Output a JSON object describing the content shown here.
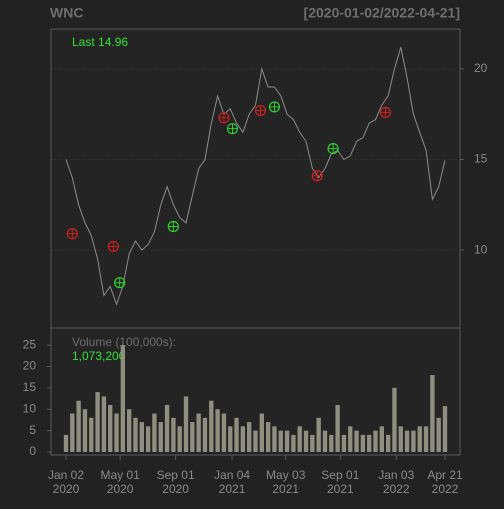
{
  "chart_data": {
    "type": "line",
    "title": "WNC",
    "subtitle": "[2020-01-02/2022-04-21]",
    "annotation": "Last 14.96",
    "x": [
      "2020-01-02",
      "2020-01-16",
      "2020-01-30",
      "2020-02-13",
      "2020-02-27",
      "2020-03-12",
      "2020-03-26",
      "2020-04-09",
      "2020-04-23",
      "2020-05-07",
      "2020-05-21",
      "2020-06-04",
      "2020-06-18",
      "2020-07-02",
      "2020-07-16",
      "2020-07-30",
      "2020-08-13",
      "2020-08-27",
      "2020-09-10",
      "2020-09-24",
      "2020-10-08",
      "2020-10-22",
      "2020-11-05",
      "2020-11-19",
      "2020-12-03",
      "2020-12-17",
      "2020-12-31",
      "2021-01-14",
      "2021-01-28",
      "2021-02-11",
      "2021-02-25",
      "2021-03-11",
      "2021-03-25",
      "2021-04-08",
      "2021-04-22",
      "2021-05-06",
      "2021-05-20",
      "2021-06-03",
      "2021-06-17",
      "2021-07-01",
      "2021-07-15",
      "2021-07-29",
      "2021-08-12",
      "2021-08-26",
      "2021-09-09",
      "2021-09-23",
      "2021-10-07",
      "2021-10-21",
      "2021-11-04",
      "2021-11-18",
      "2021-12-02",
      "2021-12-16",
      "2021-12-30",
      "2022-01-13",
      "2022-01-27",
      "2022-02-10",
      "2022-02-24",
      "2022-03-10",
      "2022-03-24",
      "2022-04-07",
      "2022-04-21"
    ],
    "series": [
      {
        "color": "#8c8c8c",
        "values": [
          15.0,
          14.0,
          12.5,
          11.5,
          10.8,
          9.5,
          7.5,
          8.0,
          7.0,
          8.0,
          9.8,
          10.5,
          10.0,
          10.3,
          11.0,
          12.5,
          13.5,
          12.5,
          11.8,
          11.5,
          13.0,
          14.5,
          15.0,
          17.0,
          18.5,
          17.5,
          17.8,
          17.0,
          16.5,
          17.5,
          18.0,
          20.0,
          19.0,
          19.0,
          18.5,
          17.5,
          17.2,
          16.5,
          16.0,
          14.5,
          14.0,
          14.5,
          15.3,
          15.5,
          15.0,
          15.2,
          16.0,
          16.2,
          17.0,
          17.2,
          18.0,
          18.5,
          20.0,
          21.2,
          19.5,
          17.5,
          16.5,
          15.5,
          12.8,
          13.5,
          14.96
        ]
      }
    ],
    "markers": [
      {
        "color": "#d02020",
        "x": [
          "2020-01-16",
          "2020-04-16",
          "2020-12-17",
          "2021-03-08",
          "2021-07-12",
          "2021-12-10"
        ],
        "values": [
          10.9,
          10.2,
          17.3,
          17.7,
          14.1,
          17.6
        ]
      },
      {
        "color": "#30d030",
        "x": [
          "2020-04-30",
          "2020-08-27",
          "2021-01-05",
          "2021-04-08",
          "2021-08-16"
        ],
        "values": [
          8.2,
          11.3,
          16.7,
          17.9,
          15.6
        ]
      }
    ],
    "ylim": [
      5.7,
      22.2
    ],
    "yticks": [
      10,
      15,
      20
    ],
    "xticks": [
      {
        "value": "2020-01-02",
        "label": "Jan 02\n2020"
      },
      {
        "value": "2020-05-01",
        "label": "May 01\n2020"
      },
      {
        "value": "2020-09-01",
        "label": "Sep 01\n2020"
      },
      {
        "value": "2021-01-04",
        "label": "Jan 04\n2021"
      },
      {
        "value": "2021-05-03",
        "label": "May 03\n2021"
      },
      {
        "value": "2021-09-01",
        "label": "Sep 01\n2021"
      },
      {
        "value": "2022-01-03",
        "label": "Jan 03\n2022"
      },
      {
        "value": "2022-04-21",
        "label": "Apr 21\n2022"
      }
    ],
    "volume": {
      "type": "bar",
      "label": "Volume (100,000s):",
      "last": {
        "value": 1073200,
        "label": "1,073,200"
      },
      "color": "#8f8f80",
      "values": [
        4,
        9,
        12,
        10,
        8,
        14,
        13,
        11,
        9,
        25,
        10,
        8,
        7,
        6,
        9,
        7,
        11,
        8,
        6,
        13,
        7,
        9,
        8,
        12,
        10,
        9,
        6,
        8,
        6,
        7,
        5,
        9,
        7,
        6,
        5,
        5,
        4,
        6,
        5,
        4,
        8,
        5,
        4,
        11,
        4,
        6,
        5,
        4,
        4,
        5,
        6,
        4,
        15,
        6,
        5,
        5,
        6,
        6,
        18,
        8,
        10.732
      ],
      "ylim": [
        0,
        29
      ],
      "yticks": [
        0,
        5,
        10,
        15,
        20,
        25
      ]
    }
  }
}
